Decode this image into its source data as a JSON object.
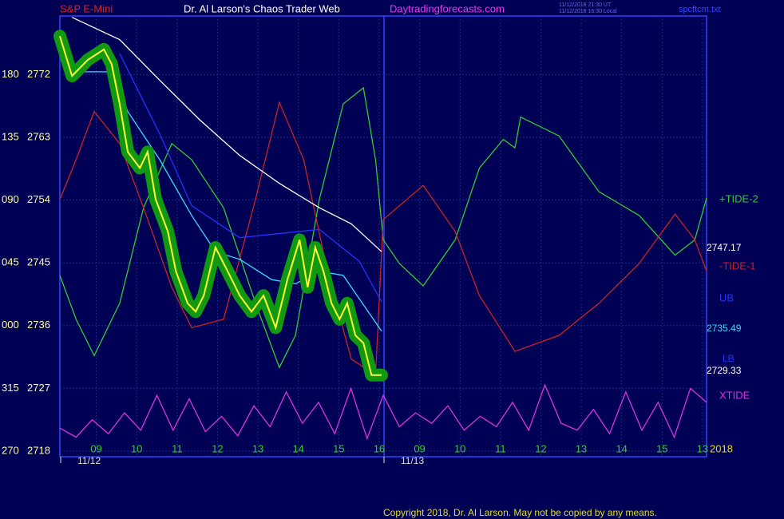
{
  "chart_data": {
    "type": "line",
    "title": "Dr. Al Larson's Chaos Trader Web",
    "symbol": "S&P E-Mini",
    "site": "Daytradingforecasts.com",
    "timestamps": [
      "11/12/2018 21:30 UT",
      "11/12/2018 16:30 Local"
    ],
    "file": "spcftcm.txt",
    "copyright": "Copyright 2018, Dr. Al Larson. May not be copied by any means.",
    "dates": [
      "11/12",
      "11/13"
    ],
    "year": "2018",
    "angle_labels": [
      "270",
      "315",
      "000",
      "045",
      "090",
      "135",
      "180"
    ],
    "ylim": [
      2717.2,
      2780.4
    ],
    "yticks": [
      2718,
      2727,
      2736,
      2745,
      2754,
      2763,
      2772
    ],
    "xlim": [
      -0.9,
      15.1
    ],
    "xticks": [
      {
        "value": 0,
        "label": "09"
      },
      {
        "value": 1,
        "label": "10"
      },
      {
        "value": 2,
        "label": "11"
      },
      {
        "value": 3,
        "label": "12"
      },
      {
        "value": 4,
        "label": "13"
      },
      {
        "value": 5,
        "label": "14"
      },
      {
        "value": 6,
        "label": "15"
      },
      {
        "value": 7,
        "label": "16"
      },
      {
        "value": 8,
        "label": "09"
      },
      {
        "value": 9,
        "label": "10"
      },
      {
        "value": 10,
        "label": "11"
      },
      {
        "value": 11,
        "label": "12"
      },
      {
        "value": 12,
        "label": "13"
      },
      {
        "value": 13,
        "label": "14"
      },
      {
        "value": 14,
        "label": "15"
      },
      {
        "value": 15,
        "label": "13"
      }
    ],
    "grid": true,
    "series": [
      {
        "name": "+TIDE-2",
        "color": "#33cc33",
        "x": [
          -0.9,
          -0.5,
          -0.05,
          0.58,
          1.17,
          1.87,
          2.36,
          3.15,
          3.94,
          4.53,
          4.93,
          5.52,
          6.11,
          6.61,
          6.91,
          7.1,
          7.5,
          8.09,
          8.88,
          9.48,
          10.07,
          10.36,
          10.5,
          11.45,
          12.44,
          13.43,
          14.32,
          14.81,
          15.1
        ],
        "values": [
          2743.2,
          2736.9,
          2731.7,
          2739.2,
          2752.9,
          2762.1,
          2759.8,
          2752.9,
          2739.2,
          2730.0,
          2734.6,
          2754.1,
          2767.8,
          2770.1,
          2759.8,
          2748.3,
          2744.9,
          2741.7,
          2748.3,
          2758.6,
          2762.7,
          2761.5,
          2765.9,
          2763.2,
          2755.2,
          2751.8,
          2746.1,
          2748.3,
          2754.3
        ]
      },
      {
        "name": "-TIDE-1",
        "color": "#cc2222",
        "x": [
          -0.9,
          -0.5,
          -0.05,
          0.58,
          1.17,
          1.87,
          2.36,
          3.15,
          3.94,
          4.53,
          5.13,
          5.72,
          6.31,
          6.91,
          7.1,
          8.09,
          8.88,
          9.48,
          10.36,
          11.45,
          12.44,
          13.43,
          14.32,
          14.81,
          15.1
        ],
        "values": [
          2754.1,
          2759.8,
          2766.7,
          2762.1,
          2752.9,
          2741.5,
          2735.7,
          2736.9,
          2754.1,
          2768.0,
          2759.8,
          2743.8,
          2731.2,
          2728.9,
          2751.2,
          2756.1,
          2749.5,
          2740.3,
          2732.3,
          2734.6,
          2739.2,
          2744.9,
          2752.0,
          2748.3,
          2743.8
        ]
      },
      {
        "name": "UB",
        "color": "#2233ff",
        "x": [
          0.58,
          1.57,
          2.36,
          3.55,
          5.52,
          6.51,
          7.06
        ],
        "values": [
          2775.0,
          2763.5,
          2753.2,
          2748.6,
          2749.8,
          2745.2,
          2739.4
        ]
      },
      {
        "name": "XTIDE",
        "color": "#dd33dd",
        "x": [
          -0.9,
          -0.5,
          -0.1,
          0.3,
          0.7,
          1.1,
          1.5,
          1.9,
          2.3,
          2.7,
          3.1,
          3.5,
          3.9,
          4.3,
          4.7,
          5.1,
          5.5,
          5.9,
          6.3,
          6.7,
          7.1,
          7.5,
          7.9,
          8.3,
          8.7,
          9.1,
          9.5,
          9.9,
          10.3,
          10.7,
          11.1,
          11.5,
          11.9,
          12.3,
          12.7,
          13.1,
          13.5,
          13.9,
          14.3,
          14.7,
          15.1
        ],
        "values": [
          2721.3,
          2720.0,
          2722.5,
          2720.5,
          2723.5,
          2721.0,
          2726.0,
          2721.0,
          2725.5,
          2720.8,
          2723.0,
          2720.2,
          2724.5,
          2721.5,
          2726.5,
          2722.0,
          2725.0,
          2720.5,
          2727.0,
          2719.8,
          2726.0,
          2721.5,
          2723.5,
          2722.0,
          2724.5,
          2721.0,
          2723.0,
          2721.5,
          2725.0,
          2721.0,
          2727.5,
          2722.0,
          2721.0,
          2724.0,
          2720.5,
          2726.5,
          2721.0,
          2725.0,
          2720.0,
          2727.0,
          2725.0
        ]
      },
      {
        "color": "#ffffff",
        "x": [
          -0.6,
          0.58,
          1.57,
          2.56,
          3.55,
          4.53,
          5.52,
          6.31,
          7.06
        ],
        "values": [
          2780.2,
          2777.0,
          2771.2,
          2765.5,
          2760.4,
          2756.4,
          2752.9,
          2750.6,
          2746.6
        ]
      },
      {
        "color": "#33ddff",
        "x": [
          -0.9,
          -0.41,
          0.38,
          0.78,
          1.57,
          2.36,
          2.95,
          3.55,
          4.34,
          4.93,
          5.52,
          6.11,
          7.06
        ],
        "values": [
          2776.4,
          2772.4,
          2772.4,
          2766.7,
          2759.8,
          2751.8,
          2746.6,
          2745.5,
          2742.6,
          2742.0,
          2743.8,
          2743.2,
          2735.2
        ]
      },
      {
        "color": "#ffff33",
        "price": true,
        "x": [
          -0.9,
          -0.6,
          -0.21,
          0.19,
          0.38,
          0.58,
          0.78,
          1.08,
          1.27,
          1.47,
          1.77,
          1.97,
          2.26,
          2.46,
          2.66,
          2.95,
          3.25,
          3.55,
          3.84,
          4.14,
          4.44,
          4.73,
          5.03,
          5.23,
          5.42,
          5.62,
          5.82,
          6.02,
          6.21,
          6.41,
          6.61,
          6.81,
          7.06
        ],
        "values": [
          2777.5,
          2771.8,
          2774.1,
          2775.6,
          2773.5,
          2767.8,
          2760.9,
          2758.6,
          2760.9,
          2754.1,
          2749.5,
          2743.8,
          2739.2,
          2738.0,
          2740.3,
          2747.2,
          2743.8,
          2740.3,
          2738.0,
          2740.3,
          2735.7,
          2742.6,
          2748.3,
          2741.5,
          2747.2,
          2743.8,
          2739.2,
          2736.9,
          2739.2,
          2734.6,
          2733.5,
          2728.9,
          2728.9
        ]
      }
    ],
    "right_labels": [
      {
        "text": "2747.17",
        "color": "#ffffff"
      },
      {
        "text": "2735.49",
        "color": "#33ddff"
      },
      {
        "text": "LB",
        "color": "#2233ff"
      },
      {
        "text": "2729.33",
        "color": "#ffffff"
      }
    ]
  }
}
